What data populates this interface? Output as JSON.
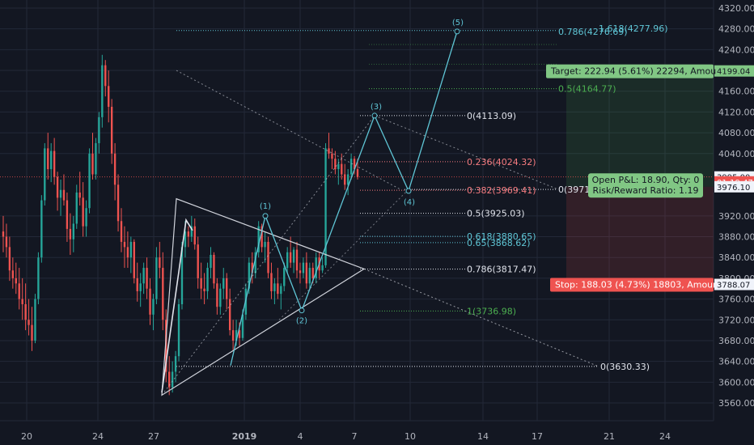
{
  "chart_data": {
    "type": "candlestick",
    "ylim": [
      3555,
      4335
    ],
    "x_ticks": [
      "20",
      "24",
      "27",
      "2019",
      "4",
      "7",
      "10",
      "14",
      "17",
      "21",
      "24"
    ],
    "y_ticks": [
      "4320.00",
      "4280.00",
      "4240.00",
      "4200.00",
      "4160.00",
      "4120.00",
      "4080.00",
      "4040.00",
      "3920.00",
      "3880.00",
      "3840.00",
      "3800.00",
      "3760.00",
      "3720.00",
      "3680.00",
      "3640.00",
      "3600.00",
      "3560.00"
    ],
    "colors": {
      "up": "#26a69a",
      "down": "#ef5350",
      "fib_white": "#e0e3eb",
      "fib_red": "#f77c80",
      "fib_cyan": "#5fc6d6",
      "fib_green": "#4caf50"
    },
    "candles": [
      [
        3890,
        3920,
        3850,
        3880
      ],
      [
        3880,
        3905,
        3840,
        3860
      ],
      [
        3860,
        3880,
        3795,
        3815
      ],
      [
        3815,
        3840,
        3780,
        3800
      ],
      [
        3800,
        3830,
        3770,
        3790
      ],
      [
        3790,
        3820,
        3740,
        3760
      ],
      [
        3760,
        3800,
        3720,
        3750
      ],
      [
        3750,
        3790,
        3700,
        3720
      ],
      [
        3720,
        3760,
        3690,
        3710
      ],
      [
        3710,
        3745,
        3660,
        3680
      ],
      [
        3680,
        3770,
        3675,
        3760
      ],
      [
        3760,
        3850,
        3750,
        3840
      ],
      [
        3840,
        3960,
        3830,
        3950
      ],
      [
        3950,
        4060,
        3940,
        4050
      ],
      [
        4050,
        4080,
        3990,
        4010
      ],
      [
        4010,
        4060,
        3985,
        4045
      ],
      [
        4045,
        4070,
        3980,
        3995
      ],
      [
        3995,
        4005,
        3930,
        3955
      ],
      [
        3955,
        3990,
        3920,
        3970
      ],
      [
        3970,
        4000,
        3940,
        3950
      ],
      [
        3950,
        3965,
        3870,
        3895
      ],
      [
        3895,
        3925,
        3845,
        3875
      ],
      [
        3875,
        3920,
        3850,
        3905
      ],
      [
        3905,
        3980,
        3895,
        3965
      ],
      [
        3965,
        4005,
        3940,
        3955
      ],
      [
        3955,
        3985,
        3880,
        3900
      ],
      [
        3900,
        3950,
        3880,
        3935
      ],
      [
        3935,
        4050,
        3925,
        4040
      ],
      [
        4040,
        4080,
        3990,
        4000
      ],
      [
        4000,
        4070,
        3990,
        4060
      ],
      [
        4060,
        4120,
        4040,
        4110
      ],
      [
        4110,
        4230,
        4090,
        4210
      ],
      [
        4210,
        4220,
        4150,
        4170
      ],
      [
        4170,
        4200,
        4100,
        4130
      ],
      [
        4130,
        4145,
        4020,
        4040
      ],
      [
        4040,
        4060,
        3950,
        3980
      ],
      [
        3980,
        4000,
        3890,
        3910
      ],
      [
        3910,
        3935,
        3850,
        3870
      ],
      [
        3870,
        3900,
        3820,
        3860
      ],
      [
        3860,
        3890,
        3820,
        3840
      ],
      [
        3840,
        3880,
        3810,
        3870
      ],
      [
        3870,
        3875,
        3790,
        3800
      ],
      [
        3800,
        3830,
        3755,
        3775
      ],
      [
        3775,
        3810,
        3745,
        3790
      ],
      [
        3790,
        3830,
        3770,
        3820
      ],
      [
        3820,
        3840,
        3760,
        3780
      ],
      [
        3780,
        3800,
        3710,
        3730
      ],
      [
        3730,
        3770,
        3700,
        3760
      ],
      [
        3760,
        3860,
        3750,
        3840
      ],
      [
        3840,
        3870,
        3800,
        3820
      ],
      [
        3820,
        3850,
        3700,
        3720
      ],
      [
        3720,
        3740,
        3600,
        3620
      ],
      [
        3620,
        3650,
        3575,
        3590
      ],
      [
        3590,
        3640,
        3580,
        3620
      ],
      [
        3620,
        3660,
        3600,
        3650
      ],
      [
        3650,
        3760,
        3640,
        3750
      ],
      [
        3750,
        3870,
        3740,
        3860
      ],
      [
        3860,
        3910,
        3840,
        3890
      ],
      [
        3890,
        3900,
        3860,
        3880
      ],
      [
        3880,
        3920,
        3870,
        3900
      ],
      [
        3900,
        3915,
        3855,
        3865
      ],
      [
        3865,
        3880,
        3780,
        3800
      ],
      [
        3800,
        3830,
        3760,
        3780
      ],
      [
        3780,
        3810,
        3750,
        3775
      ],
      [
        3775,
        3830,
        3760,
        3820
      ],
      [
        3820,
        3860,
        3800,
        3845
      ],
      [
        3845,
        3850,
        3780,
        3790
      ],
      [
        3790,
        3800,
        3730,
        3745
      ],
      [
        3745,
        3790,
        3730,
        3780
      ],
      [
        3780,
        3820,
        3760,
        3800
      ],
      [
        3800,
        3810,
        3740,
        3760
      ],
      [
        3760,
        3780,
        3690,
        3700
      ],
      [
        3700,
        3720,
        3660,
        3680
      ],
      [
        3680,
        3720,
        3670,
        3700
      ],
      [
        3700,
        3715,
        3670,
        3685
      ],
      [
        3685,
        3740,
        3680,
        3730
      ],
      [
        3730,
        3790,
        3720,
        3780
      ],
      [
        3780,
        3840,
        3770,
        3830
      ],
      [
        3830,
        3850,
        3790,
        3810
      ],
      [
        3810,
        3860,
        3800,
        3850
      ],
      [
        3850,
        3910,
        3840,
        3900
      ],
      [
        3900,
        3905,
        3850,
        3860
      ],
      [
        3860,
        3890,
        3830,
        3870
      ],
      [
        3870,
        3880,
        3800,
        3810
      ],
      [
        3810,
        3830,
        3760,
        3775
      ],
      [
        3775,
        3800,
        3750,
        3790
      ],
      [
        3790,
        3820,
        3760,
        3770
      ],
      [
        3770,
        3790,
        3740,
        3785
      ],
      [
        3785,
        3830,
        3775,
        3820
      ],
      [
        3820,
        3860,
        3810,
        3850
      ],
      [
        3850,
        3880,
        3820,
        3830
      ],
      [
        3830,
        3860,
        3810,
        3855
      ],
      [
        3855,
        3870,
        3800,
        3815
      ],
      [
        3815,
        3830,
        3790,
        3810
      ],
      [
        3810,
        3840,
        3800,
        3830
      ],
      [
        3830,
        3850,
        3780,
        3790
      ],
      [
        3790,
        3830,
        3780,
        3820
      ],
      [
        3820,
        3830,
        3790,
        3800
      ],
      [
        3800,
        3850,
        3790,
        3840
      ],
      [
        3840,
        3850,
        3800,
        3815
      ],
      [
        3815,
        3840,
        3810,
        3825
      ],
      [
        3825,
        4060,
        3820,
        4050
      ],
      [
        4050,
        4080,
        4030,
        4040
      ],
      [
        4040,
        4050,
        4010,
        4030
      ],
      [
        4030,
        4045,
        4000,
        4010
      ],
      [
        4010,
        4030,
        3980,
        4020
      ],
      [
        4020,
        4040,
        3990,
        4000
      ],
      [
        4000,
        4020,
        3970,
        3980
      ],
      [
        3980,
        4010,
        3960,
        4000
      ],
      [
        4000,
        4040,
        3990,
        4030
      ],
      [
        4030,
        4035,
        4000,
        4010
      ],
      [
        4010,
        4030,
        3990,
        3995
      ]
    ],
    "fib_levels_a": [
      {
        "label": "0(4113.09)",
        "value": 4113.09,
        "color": "white"
      },
      {
        "label": "0.236(4024.32)",
        "value": 4024.32,
        "color": "red"
      },
      {
        "label": "0.382(3969.41)",
        "value": 3969.41,
        "color": "red"
      },
      {
        "label": "0.5(3925.03)",
        "value": 3925.03,
        "color": "white"
      },
      {
        "label": "0.618(3880.65)",
        "value": 3880.65,
        "color": "cyan"
      },
      {
        "label": "0.65(3868.62)",
        "value": 3868.62,
        "color": "cyan"
      },
      {
        "label": "0.786(3817.47)",
        "value": 3817.47,
        "color": "white"
      },
      {
        "label": "1(3736.98)",
        "value": 3736.98,
        "color": "green"
      }
    ],
    "fib_ext": [
      {
        "label": "0.786(4276.69)",
        "value": 4276.69,
        "color": "cyan"
      },
      {
        "label": "1.618(4277.96)",
        "value": 4277.96,
        "color": "cyan"
      },
      {
        "label": "0.5(4164.77)",
        "value": 4164.77,
        "color": "green"
      }
    ],
    "fib_b": [
      {
        "label": "0(3971",
        "value": 3971,
        "color": "white"
      },
      {
        "label": "0(3630.33)",
        "value": 3630.33,
        "color": "white"
      }
    ],
    "wave_labels": [
      "(1)",
      "(2)",
      "(3)",
      "(4)",
      "(5)"
    ],
    "position": {
      "entry": 3976.1,
      "target_price": 4199.04,
      "stop_price": 3788.07,
      "target_text": "Target: 222.94 (5.61%) 22294, Amou",
      "stop_text": "Stop: 188.03 (4.73%) 18803, Amour",
      "pnl_text": "Open P&L: 18.90, Qty: 0",
      "rr_text": "Risk/Reward Ratio: 1.19"
    },
    "price_badges": [
      {
        "text": "4199.04",
        "value": 4199.04,
        "bg": "#81c784",
        "fg": "#131722"
      },
      {
        "text": "3995.00",
        "value": 3995.0,
        "bg": "#f0f3fa",
        "fg": "#131722"
      },
      {
        "text": "01:19:47",
        "value": 3985.5,
        "bg": "#ef5350",
        "fg": "#ffffff"
      },
      {
        "text": "3976.10",
        "value": 3976.1,
        "bg": "#f0f3fa",
        "fg": "#131722"
      },
      {
        "text": "3788.07",
        "value": 3788.07,
        "bg": "#f0f3fa",
        "fg": "#131722"
      }
    ]
  }
}
